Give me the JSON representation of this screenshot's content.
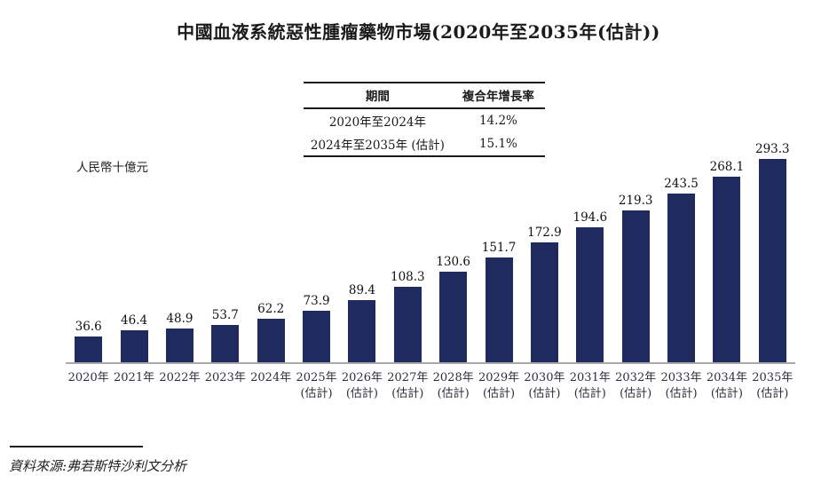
{
  "page": {
    "title": "中國血液系統惡性腫瘤藥物市場(2020年至2035年(估計))",
    "source": "資料來源:弗若斯特沙利文分析"
  },
  "cagr_table": {
    "headers": [
      "期間",
      "複合年增長率"
    ],
    "rows": [
      [
        "2020年至2024年",
        "14.2%"
      ],
      [
        "2024年至2035年 (估計)",
        "15.1%"
      ]
    ]
  },
  "chart_data": {
    "type": "bar",
    "title": "中國血液系統惡性腫瘤藥物市場(2020年至2035年(估計))",
    "ylabel": "人民幣十億元",
    "xlabel": "",
    "categories": [
      "2020年",
      "2021年",
      "2022年",
      "2023年",
      "2024年",
      "2025年\n(估計)",
      "2026年\n(估計)",
      "2027年\n(估計)",
      "2028年\n(估計)",
      "2029年\n(估計)",
      "2030年\n(估計)",
      "2031年\n(估計)",
      "2032年\n(估計)",
      "2033年\n(估計)",
      "2034年\n(估計)",
      "2035年\n(估計)"
    ],
    "values": [
      36.6,
      46.4,
      48.9,
      53.7,
      62.2,
      73.9,
      89.4,
      108.3,
      130.6,
      151.7,
      172.9,
      194.6,
      219.3,
      243.5,
      268.1,
      293.3
    ],
    "bar_color": "#1f2a5e",
    "baseline_color": "#a9a9a9",
    "ylim": [
      0,
      300
    ],
    "grid": false,
    "data_labels": true,
    "legend_position": "none"
  }
}
